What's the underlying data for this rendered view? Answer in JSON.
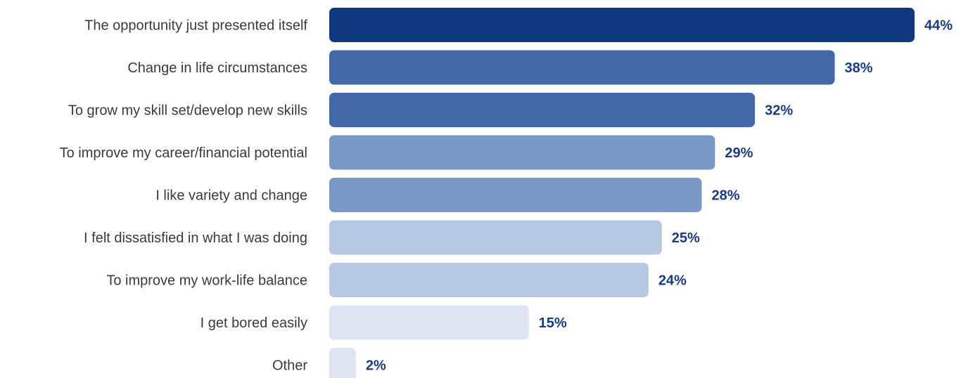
{
  "chart_data": {
    "type": "bar",
    "orientation": "horizontal",
    "title": "",
    "xlabel": "",
    "ylabel": "",
    "xlim": [
      0,
      44
    ],
    "value_suffix": "%",
    "grid": false,
    "legend": "none",
    "categories": [
      "The opportunity just presented itself",
      "Change in life circumstances",
      "To grow my skill set/develop new skills",
      "To improve my career/financial potential",
      "I like variety and change",
      "I felt dissatisfied in what I was doing",
      "To improve my work-life balance",
      "I get bored easily",
      "Other"
    ],
    "values": [
      44,
      38,
      32,
      29,
      28,
      25,
      24,
      15,
      2
    ],
    "bar_colors": [
      "#0f387f",
      "#4268a7",
      "#4268a7",
      "#7a98c6",
      "#7a98c6",
      "#b7c8e2",
      "#b7c8e2",
      "#dce5f1",
      "#dce5f1"
    ],
    "value_label_color": "#1a3b82",
    "category_label_color": "#3a3a3a"
  }
}
